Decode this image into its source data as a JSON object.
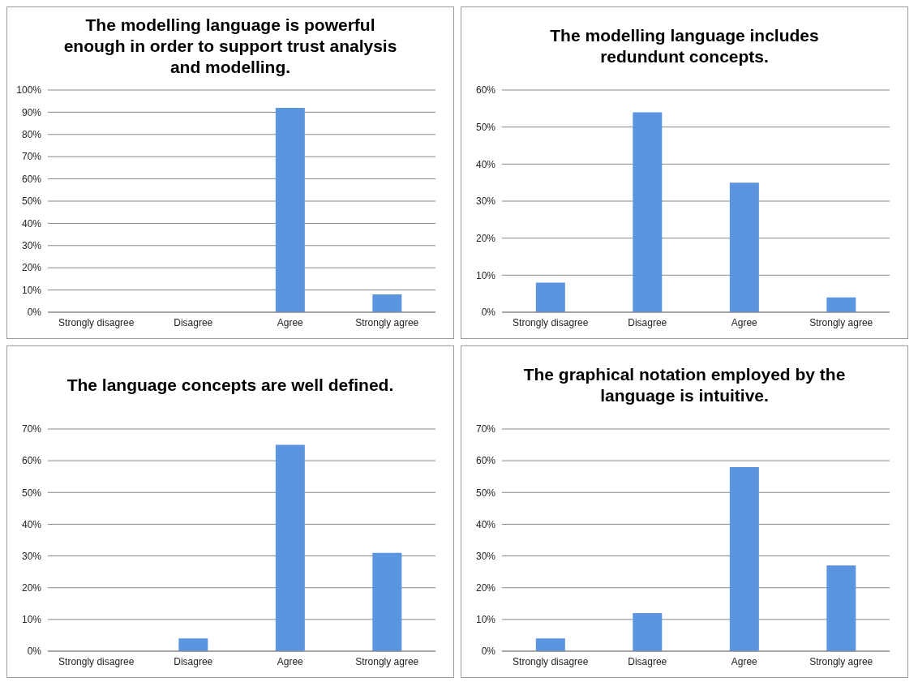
{
  "chart_data": [
    {
      "type": "bar",
      "title": "The modelling language is powerful enough in order to support trust analysis and modelling.",
      "categories": [
        "Strongly disagree",
        "Disagree",
        "Agree",
        "Strongly agree"
      ],
      "values": [
        0,
        0,
        92,
        8
      ],
      "color": "#5b95e0",
      "ylim": [
        0,
        100
      ],
      "yticks": [
        {
          "value": 0,
          "label": "0%"
        },
        {
          "value": 10,
          "label": "10%"
        },
        {
          "value": 20,
          "label": "20%"
        },
        {
          "value": 30,
          "label": "30%"
        },
        {
          "value": 40,
          "label": "40%"
        },
        {
          "value": 50,
          "label": "50%"
        },
        {
          "value": 60,
          "label": "60%"
        },
        {
          "value": 70,
          "label": "70%"
        },
        {
          "value": 80,
          "label": "80%"
        },
        {
          "value": 90,
          "label": "90%"
        },
        {
          "value": 100,
          "label": "100%"
        }
      ],
      "grid": "y",
      "legend": false
    },
    {
      "type": "bar",
      "title": "The modelling language includes redundunt concepts.",
      "categories": [
        "Strongly disagree",
        "Disagree",
        "Agree",
        "Strongly agree"
      ],
      "values": [
        8,
        54,
        35,
        4
      ],
      "color": "#5b95e0",
      "ylim": [
        0,
        60
      ],
      "yticks": [
        {
          "value": 0,
          "label": "0%"
        },
        {
          "value": 10,
          "label": "10%"
        },
        {
          "value": 20,
          "label": "20%"
        },
        {
          "value": 30,
          "label": "30%"
        },
        {
          "value": 40,
          "label": "40%"
        },
        {
          "value": 50,
          "label": "50%"
        },
        {
          "value": 60,
          "label": "60%"
        }
      ],
      "grid": "y",
      "legend": false
    },
    {
      "type": "bar",
      "title": "The language concepts are well defined.",
      "categories": [
        "Strongly disagree",
        "Disagree",
        "Agree",
        "Strongly agree"
      ],
      "values": [
        0,
        4,
        65,
        31
      ],
      "color": "#5b95e0",
      "ylim": [
        0,
        70
      ],
      "yticks": [
        {
          "value": 0,
          "label": "0%"
        },
        {
          "value": 10,
          "label": "10%"
        },
        {
          "value": 20,
          "label": "20%"
        },
        {
          "value": 30,
          "label": "30%"
        },
        {
          "value": 40,
          "label": "40%"
        },
        {
          "value": 50,
          "label": "50%"
        },
        {
          "value": 60,
          "label": "60%"
        },
        {
          "value": 70,
          "label": "70%"
        }
      ],
      "grid": "y",
      "legend": false
    },
    {
      "type": "bar",
      "title": "The graphical notation employed by the language is intuitive.",
      "categories": [
        "Strongly disagree",
        "Disagree",
        "Agree",
        "Strongly agree"
      ],
      "values": [
        4,
        12,
        58,
        27
      ],
      "color": "#5b95e0",
      "ylim": [
        0,
        70
      ],
      "yticks": [
        {
          "value": 0,
          "label": "0%"
        },
        {
          "value": 10,
          "label": "10%"
        },
        {
          "value": 20,
          "label": "20%"
        },
        {
          "value": 30,
          "label": "30%"
        },
        {
          "value": 40,
          "label": "40%"
        },
        {
          "value": 50,
          "label": "50%"
        },
        {
          "value": 60,
          "label": "60%"
        },
        {
          "value": 70,
          "label": "70%"
        }
      ],
      "grid": "y",
      "legend": false
    }
  ]
}
